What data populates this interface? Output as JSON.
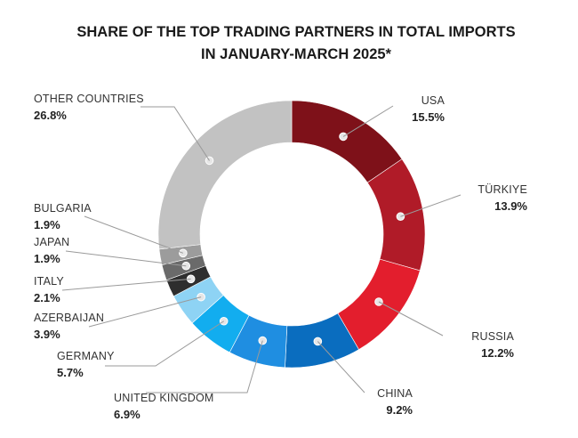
{
  "chart_data": {
    "type": "pie",
    "variant": "donut",
    "title_lines": [
      "SHARE OF THE TOP TRADING PARTNERS IN TOTAL IMPORTS",
      "IN JANUARY-MARCH 2025*"
    ],
    "slices": [
      {
        "label": "USA",
        "value_text": "15.5%",
        "value": 15.5,
        "color": "#7e1119"
      },
      {
        "label": "TÜRKIYE",
        "value_text": "13.9%",
        "value": 13.9,
        "color": "#b01b28"
      },
      {
        "label": "RUSSIA",
        "value_text": "12.2%",
        "value": 12.2,
        "color": "#e31e2d"
      },
      {
        "label": "CHINA",
        "value_text": "9.2%",
        "value": 9.2,
        "color": "#0a6dbf"
      },
      {
        "label": "UNITED KINGDOM",
        "value_text": "6.9%",
        "value": 6.9,
        "color": "#1f8ee1"
      },
      {
        "label": "GERMANY",
        "value_text": "5.7%",
        "value": 5.7,
        "color": "#12adef"
      },
      {
        "label": "AZERBAIJAN",
        "value_text": "3.9%",
        "value": 3.9,
        "color": "#8ed3f4"
      },
      {
        "label": "ITALY",
        "value_text": "2.1%",
        "value": 2.1,
        "color": "#2e2e2e"
      },
      {
        "label": "JAPAN",
        "value_text": "1.9%",
        "value": 1.9,
        "color": "#6a6a6a"
      },
      {
        "label": "BULGARIA",
        "value_text": "1.9%",
        "value": 1.9,
        "color": "#9c9c9c"
      },
      {
        "label": "OTHER COUNTRIES",
        "value_text": "26.8%",
        "value": 26.8,
        "color": "#c2c2c2"
      }
    ]
  }
}
